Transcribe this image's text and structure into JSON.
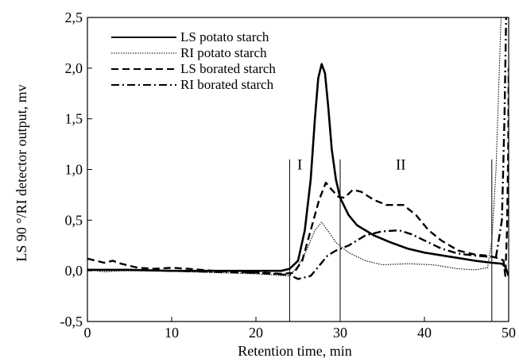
{
  "chart_data": {
    "type": "line",
    "xlabel": "Retention time, min",
    "ylabel": "LS 90 °/RI detector output, mv",
    "xlim": [
      0,
      50
    ],
    "ylim": [
      -0.5,
      2.5
    ],
    "x_ticks": [
      "0",
      "10",
      "20",
      "30",
      "40",
      "50"
    ],
    "y_ticks": [
      "-0,5",
      "0,0",
      "0,5",
      "1,0",
      "1,5",
      "2,0",
      "2,5"
    ],
    "grid": false,
    "legend_position": "top-left",
    "region_markers": [
      24,
      30,
      48
    ],
    "region_labels": [
      {
        "text": "I",
        "x": 25.2,
        "y": 1.0
      },
      {
        "text": "II",
        "x": 37.2,
        "y": 1.0
      }
    ],
    "series": [
      {
        "name": "LS potato starch",
        "style": "solid",
        "points": [
          [
            0,
            0.01
          ],
          [
            5,
            0.01
          ],
          [
            10,
            0.0
          ],
          [
            15,
            0.0
          ],
          [
            20,
            0.0
          ],
          [
            22,
            0.0
          ],
          [
            23,
            0.0
          ],
          [
            24,
            0.02
          ],
          [
            25,
            0.1
          ],
          [
            25.8,
            0.4
          ],
          [
            26.5,
            0.9
          ],
          [
            27,
            1.5
          ],
          [
            27.4,
            1.9
          ],
          [
            27.8,
            2.04
          ],
          [
            28.2,
            1.95
          ],
          [
            28.6,
            1.6
          ],
          [
            29,
            1.2
          ],
          [
            29.5,
            0.9
          ],
          [
            30,
            0.72
          ],
          [
            31,
            0.55
          ],
          [
            32,
            0.45
          ],
          [
            34,
            0.35
          ],
          [
            36,
            0.28
          ],
          [
            38,
            0.22
          ],
          [
            40,
            0.18
          ],
          [
            43,
            0.14
          ],
          [
            46,
            0.1
          ],
          [
            48,
            0.08
          ],
          [
            49.2,
            0.07
          ],
          [
            49.6,
            0.04
          ],
          [
            50,
            -0.05
          ]
        ]
      },
      {
        "name": "RI potato starch",
        "style": "dotted",
        "points": [
          [
            0,
            0.01
          ],
          [
            2,
            -0.01
          ],
          [
            4,
            0.0
          ],
          [
            8,
            0.0
          ],
          [
            12,
            -0.01
          ],
          [
            16,
            -0.02
          ],
          [
            20,
            -0.03
          ],
          [
            22,
            -0.04
          ],
          [
            24,
            -0.05
          ],
          [
            25,
            0.05
          ],
          [
            26,
            0.2
          ],
          [
            27,
            0.4
          ],
          [
            27.8,
            0.48
          ],
          [
            28.5,
            0.4
          ],
          [
            29.5,
            0.28
          ],
          [
            31,
            0.18
          ],
          [
            33,
            0.1
          ],
          [
            35,
            0.06
          ],
          [
            38,
            0.07
          ],
          [
            41,
            0.06
          ],
          [
            44,
            0.02
          ],
          [
            46,
            0.01
          ],
          [
            47.5,
            0.03
          ],
          [
            48,
            0.3
          ],
          [
            48.5,
            1.0
          ],
          [
            48.9,
            2.0
          ],
          [
            49.1,
            2.5
          ]
        ]
      },
      {
        "name": "LS borated starch",
        "style": "dashed",
        "points": [
          [
            0,
            0.12
          ],
          [
            1,
            0.1
          ],
          [
            2,
            0.08
          ],
          [
            3,
            0.1
          ],
          [
            4,
            0.07
          ],
          [
            6,
            0.03
          ],
          [
            8,
            0.02
          ],
          [
            10,
            0.03
          ],
          [
            12,
            0.02
          ],
          [
            15,
            0.0
          ],
          [
            18,
            -0.01
          ],
          [
            21,
            -0.02
          ],
          [
            23,
            -0.03
          ],
          [
            24.5,
            -0.02
          ],
          [
            25.5,
            0.1
          ],
          [
            26.5,
            0.4
          ],
          [
            27.5,
            0.7
          ],
          [
            28.3,
            0.87
          ],
          [
            29,
            0.8
          ],
          [
            29.8,
            0.73
          ],
          [
            30.5,
            0.72
          ],
          [
            31.5,
            0.8
          ],
          [
            32.5,
            0.78
          ],
          [
            34,
            0.7
          ],
          [
            35.5,
            0.65
          ],
          [
            37.5,
            0.65
          ],
          [
            39,
            0.55
          ],
          [
            40.5,
            0.4
          ],
          [
            42,
            0.3
          ],
          [
            44,
            0.2
          ],
          [
            46,
            0.16
          ],
          [
            47.5,
            0.15
          ],
          [
            49,
            0.12
          ],
          [
            49.4,
            0.1
          ],
          [
            49.6,
            -0.05
          ],
          [
            49.8,
            0.4
          ],
          [
            49.95,
            1.2
          ],
          [
            50,
            2.0
          ]
        ]
      },
      {
        "name": "RI borated starch",
        "style": "dashdot",
        "points": [
          [
            0,
            0.01
          ],
          [
            5,
            0.01
          ],
          [
            10,
            0.0
          ],
          [
            15,
            -0.01
          ],
          [
            20,
            -0.02
          ],
          [
            24,
            -0.04
          ],
          [
            25,
            -0.08
          ],
          [
            26.5,
            -0.05
          ],
          [
            27.5,
            0.05
          ],
          [
            28.5,
            0.15
          ],
          [
            29.5,
            0.2
          ],
          [
            31,
            0.25
          ],
          [
            33,
            0.35
          ],
          [
            35,
            0.39
          ],
          [
            37,
            0.4
          ],
          [
            38.5,
            0.36
          ],
          [
            40,
            0.3
          ],
          [
            42,
            0.22
          ],
          [
            44,
            0.17
          ],
          [
            46,
            0.15
          ],
          [
            47.5,
            0.14
          ],
          [
            48.5,
            0.14
          ],
          [
            49.2,
            0.5
          ],
          [
            49.5,
            1.5
          ],
          [
            49.7,
            2.5
          ]
        ]
      }
    ]
  }
}
